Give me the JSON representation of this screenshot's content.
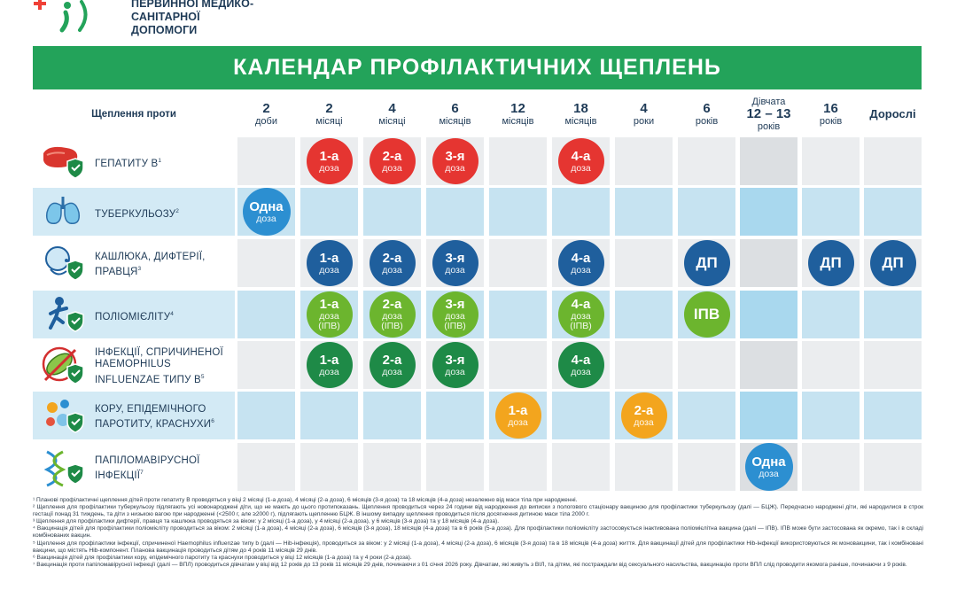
{
  "org": {
    "line1": "ПЕРВИННОЇ МЕДИКО-САНІТАРНОЇ",
    "line2": "ДОПОМОГИ"
  },
  "title": "КАЛЕНДАР ПРОФІЛАКТИЧНИХ ЩЕПЛЕНЬ",
  "row_header": "Щеплення проти",
  "ages": [
    {
      "num": "2",
      "unit": "доби"
    },
    {
      "num": "2",
      "unit": "місяці"
    },
    {
      "num": "4",
      "unit": "місяці"
    },
    {
      "num": "6",
      "unit": "місяців"
    },
    {
      "num": "12",
      "unit": "місяців"
    },
    {
      "num": "18",
      "unit": "місяців"
    },
    {
      "num": "4",
      "unit": "роки"
    },
    {
      "num": "6",
      "unit": "років"
    },
    {
      "pre": "Дівчата",
      "num": "12 – 13",
      "unit": "років"
    },
    {
      "num": "16",
      "unit": "років"
    },
    {
      "num": "Дорослі",
      "unit": ""
    }
  ],
  "rows": [
    {
      "icon": "liver-shield-icon",
      "label": "ГЕПАТИТУ В",
      "sup": "1",
      "doses": [
        {
          "col": 1,
          "main": "1-а",
          "sub": "доза",
          "color": "#e53531"
        },
        {
          "col": 2,
          "main": "2-а",
          "sub": "доза",
          "color": "#e53531"
        },
        {
          "col": 3,
          "main": "3-я",
          "sub": "доза",
          "color": "#e53531"
        },
        {
          "col": 5,
          "main": "4-а",
          "sub": "доза",
          "color": "#e53531"
        }
      ]
    },
    {
      "icon": "lungs-icon",
      "label": "ТУБЕРКУЛЬОЗУ",
      "sup": "2",
      "doses": [
        {
          "col": 0,
          "main": "Одна",
          "sub": "доза",
          "color": "#2c8fd1"
        }
      ]
    },
    {
      "icon": "cough-person-shield-icon",
      "label1": "КАШЛЮКА, ДИФТЕРІЇ,",
      "label2": "ПРАВЦЯ",
      "sup": "3",
      "doses": [
        {
          "col": 1,
          "main": "1-а",
          "sub": "доза",
          "color": "#1f5f9d"
        },
        {
          "col": 2,
          "main": "2-а",
          "sub": "доза",
          "color": "#1f5f9d"
        },
        {
          "col": 3,
          "main": "3-я",
          "sub": "доза",
          "color": "#1f5f9d"
        },
        {
          "col": 5,
          "main": "4-а",
          "sub": "доза",
          "color": "#1f5f9d"
        },
        {
          "col": 7,
          "main": "ДП",
          "sub": "",
          "color": "#1f5f9d"
        },
        {
          "col": 9,
          "main": "ДП",
          "sub": "",
          "color": "#1f5f9d"
        },
        {
          "col": 10,
          "main": "ДП",
          "sub": "",
          "color": "#1f5f9d"
        }
      ]
    },
    {
      "icon": "running-child-shield-icon",
      "label": "ПОЛІОМІЄЛІТУ",
      "sup": "4",
      "doses": [
        {
          "col": 1,
          "main": "1-а",
          "sub": "доза",
          "sub2": "(ІПВ)",
          "color": "#6cb52e"
        },
        {
          "col": 2,
          "main": "2-а",
          "sub": "доза",
          "sub2": "(ІПВ)",
          "color": "#6cb52e"
        },
        {
          "col": 3,
          "main": "3-я",
          "sub": "доза",
          "sub2": "(ІПВ)",
          "color": "#6cb52e"
        },
        {
          "col": 5,
          "main": "4-а",
          "sub": "доза",
          "sub2": "(ІПВ)",
          "color": "#6cb52e"
        },
        {
          "col": 7,
          "main": "ІПВ",
          "sub": "",
          "color": "#6cb52e"
        }
      ]
    },
    {
      "icon": "bacteria-shield-icon",
      "label1": "ІНФЕКЦІЇ, СПРИЧИНЕНОЇ",
      "label2": "HAEMOPHILUS",
      "label3": "INFLUENZAE ТИПУ В",
      "sup": "5",
      "doses": [
        {
          "col": 1,
          "main": "1-а",
          "sub": "доза",
          "color": "#1e8a47"
        },
        {
          "col": 2,
          "main": "2-а",
          "sub": "доза",
          "color": "#1e8a47"
        },
        {
          "col": 3,
          "main": "3-я",
          "sub": "доза",
          "color": "#1e8a47"
        },
        {
          "col": 5,
          "main": "4-а",
          "sub": "доза",
          "color": "#1e8a47"
        }
      ]
    },
    {
      "icon": "virus-shield-icon",
      "label1": "КОРУ, ЕПІДЕМІЧНОГО",
      "label2": "ПАРОТИТУ, КРАСНУХИ",
      "sup": "6",
      "doses": [
        {
          "col": 4,
          "main": "1-а",
          "sub": "доза",
          "color": "#f3a51e"
        },
        {
          "col": 6,
          "main": "2-а",
          "sub": "доза",
          "color": "#f3a51e"
        }
      ]
    },
    {
      "icon": "dna-shield-icon",
      "label1": "ПАПІЛОМАВІРУСНОЇ",
      "label2": "ІНФЕКЦІЇ",
      "sup": "7",
      "doses": [
        {
          "col": 8,
          "main": "Одна",
          "sub": "доза",
          "color": "#2c8fd1"
        }
      ]
    }
  ],
  "footnotes": [
    "¹ Планові профілактичні щеплення дітей проти гепатиту В проводяться у віці 2 місяці (1-а доза), 4 місяці (2-а доза), 6 місяців (3-я доза) та 18 місяців (4-а доза) незалежно від маси тіла при народженні.",
    "² Щеплення для профілактики туберкульозу підлягають усі новонароджені діти, що не мають до цього протипоказань. Щеплення проводиться через 24 години від народження до виписки з пологового стаціонару вакциною для профілактики туберкульозу (далі — БЦЖ). Передчасно народжені діти, які народилися в строк гестації понад 31 тиждень, та діти з низькою вагою при народженні (<2500 г, але ≥2000 г), підлягають щепленню БЦЖ. В іншому випадку щеплення проводиться після досягнення дитиною маси тіла 2000 г.",
    "³ Щеплення для профілактики дифтерії, правця та кашлюка проводяться за віком: у 2 місяці (1-а доза), у 4 місяці (2-а доза), у 6 місяців (3-я доза) та у 18 місяців (4-а доза).",
    "⁴ Вакцинація дітей для профілактики поліомієліту проводиться за віком: 2 місяці (1-а доза), 4 місяці (2-а доза), 6 місяців (3-я доза), 18 місяців (4-а доза) та в 6 років (5-а доза). Для профілактики поліомієліту застосовується інактивована поліомієлітна вакцина (далі — ІПВ). ІПВ може бути застосована як окремо, так і в складі комбінованих вакцин.",
    "⁵ Щеплення для профілактики інфекції, спричиненої Haemophilus influenzae типу b (далі — Hib-інфекція), проводиться за віком: у 2 місяці (1-а доза), 4 місяці (2-а доза), 6 місяців (3-я доза) та в 18 місяців (4-а доза) життя. Для вакцинації дітей для профілактики Hib-інфекції використовуються як моновакцини, так і комбіновані вакцини, що містять Hib-компонент. Планова вакцинація проводиться дітям до 4 років 11 місяців 29 днів.",
    "⁶ Вакцинація дітей для профілактики кору, епідемічного паротиту та краснухи проводиться у віці 12 місяців (1-а доза) та у 4 роки (2-а доза).",
    "⁷ Вакцинація проти папіломавірусної інфекції (далі — ВПЛ) проводиться дівчатам у віці від 12 років до 13 років 11 місяців 29 днів, починаючи з 01 січня 2026 року. Дівчатам, які живуть з ВІЛ, та дітям, які постраждали від сексуального насильства, вакцинацію проти ВПЛ слід проводити якомога раніше, починаючи з 9 років."
  ],
  "icons": {
    "logo": "plus-health-logo-icon"
  }
}
